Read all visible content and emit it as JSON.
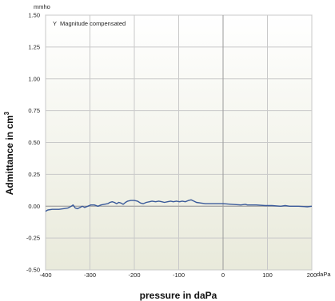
{
  "chart_data": {
    "type": "line",
    "y_unit": "mmho",
    "xlabel": "pressure in daPa",
    "ylabel": "Admittance in cm",
    "ylabel_superscript": "3",
    "x_unit_suffix": "daPa",
    "legend": "Y  Magnitude compensated",
    "legend_position": "top-left",
    "grid": true,
    "xlim": [
      -400,
      200
    ],
    "ylim": [
      -0.5,
      1.5
    ],
    "x_ticks": [
      -400,
      -300,
      -200,
      -100,
      0,
      100,
      200
    ],
    "x_tick_labels": [
      "-400",
      "-300",
      "-200",
      "-100",
      "0",
      "100",
      "200"
    ],
    "y_ticks": [
      -0.5,
      -0.25,
      0,
      0.25,
      0.5,
      0.75,
      1.0,
      1.25,
      1.5
    ],
    "y_tick_labels": [
      "-0.50",
      "-0.25",
      "0.00",
      "0.25",
      "0.50",
      "0.75",
      "1.00",
      "1.25",
      "1.50"
    ],
    "line_color": "#3a5a9a",
    "series": [
      {
        "values": [
          [
            -400,
            -0.04
          ],
          [
            -395,
            -0.03
          ],
          [
            -385,
            -0.025
          ],
          [
            -370,
            -0.025
          ],
          [
            -360,
            -0.02
          ],
          [
            -350,
            -0.015
          ],
          [
            -342,
            0.0
          ],
          [
            -338,
            0.01
          ],
          [
            -333,
            -0.015
          ],
          [
            -328,
            -0.02
          ],
          [
            -322,
            -0.01
          ],
          [
            -317,
            0.0
          ],
          [
            -312,
            -0.01
          ],
          [
            -305,
            0.0
          ],
          [
            -298,
            0.01
          ],
          [
            -290,
            0.01
          ],
          [
            -282,
            0.0
          ],
          [
            -275,
            0.01
          ],
          [
            -268,
            0.015
          ],
          [
            -260,
            0.02
          ],
          [
            -255,
            0.03
          ],
          [
            -250,
            0.035
          ],
          [
            -245,
            0.03
          ],
          [
            -240,
            0.02
          ],
          [
            -235,
            0.03
          ],
          [
            -230,
            0.025
          ],
          [
            -225,
            0.015
          ],
          [
            -220,
            0.03
          ],
          [
            -215,
            0.04
          ],
          [
            -208,
            0.045
          ],
          [
            -200,
            0.045
          ],
          [
            -193,
            0.04
          ],
          [
            -186,
            0.025
          ],
          [
            -180,
            0.02
          ],
          [
            -173,
            0.03
          ],
          [
            -166,
            0.035
          ],
          [
            -160,
            0.04
          ],
          [
            -152,
            0.035
          ],
          [
            -145,
            0.04
          ],
          [
            -138,
            0.035
          ],
          [
            -132,
            0.03
          ],
          [
            -125,
            0.035
          ],
          [
            -118,
            0.04
          ],
          [
            -112,
            0.035
          ],
          [
            -105,
            0.04
          ],
          [
            -98,
            0.035
          ],
          [
            -92,
            0.04
          ],
          [
            -85,
            0.035
          ],
          [
            -78,
            0.045
          ],
          [
            -72,
            0.05
          ],
          [
            -66,
            0.04
          ],
          [
            -60,
            0.03
          ],
          [
            -50,
            0.025
          ],
          [
            -40,
            0.02
          ],
          [
            -20,
            0.02
          ],
          [
            0,
            0.02
          ],
          [
            20,
            0.015
          ],
          [
            40,
            0.01
          ],
          [
            50,
            0.015
          ],
          [
            55,
            0.01
          ],
          [
            75,
            0.01
          ],
          [
            95,
            0.005
          ],
          [
            110,
            0.005
          ],
          [
            130,
            0.0
          ],
          [
            140,
            0.005
          ],
          [
            150,
            0.0
          ],
          [
            170,
            0.0
          ],
          [
            190,
            -0.005
          ],
          [
            200,
            0.0
          ]
        ]
      }
    ]
  }
}
